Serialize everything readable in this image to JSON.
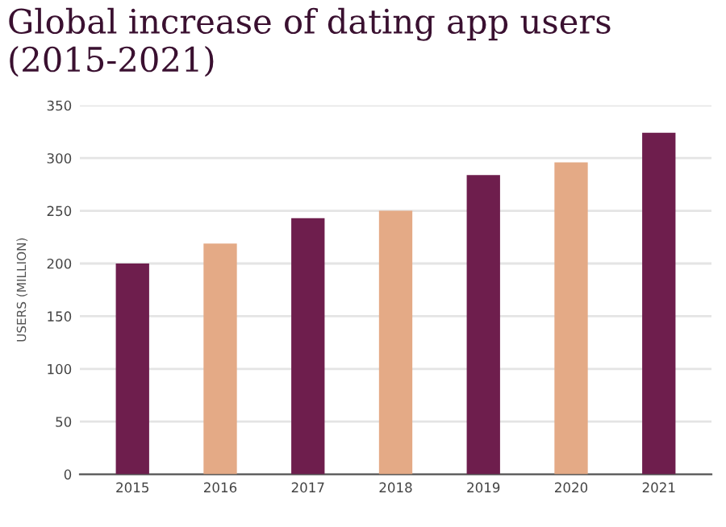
{
  "chart_data": {
    "type": "bar",
    "title": "Global increase of dating app users\n(2015-2021)",
    "ylabel": "USERS (MILLION)",
    "categories": [
      "2015",
      "2016",
      "2017",
      "2018",
      "2019",
      "2020",
      "2021"
    ],
    "values": [
      200,
      219,
      243,
      250,
      284,
      296,
      324
    ],
    "colors": [
      "#7b1150",
      "#f4a676",
      "#7b1150",
      "#f4a676",
      "#7b1150",
      "#f4a676",
      "#7b1150"
    ],
    "ylim": [
      0,
      350
    ],
    "yticks": [
      0,
      50,
      100,
      150,
      200,
      250,
      300,
      350
    ],
    "grid": "y",
    "legend": false
  }
}
